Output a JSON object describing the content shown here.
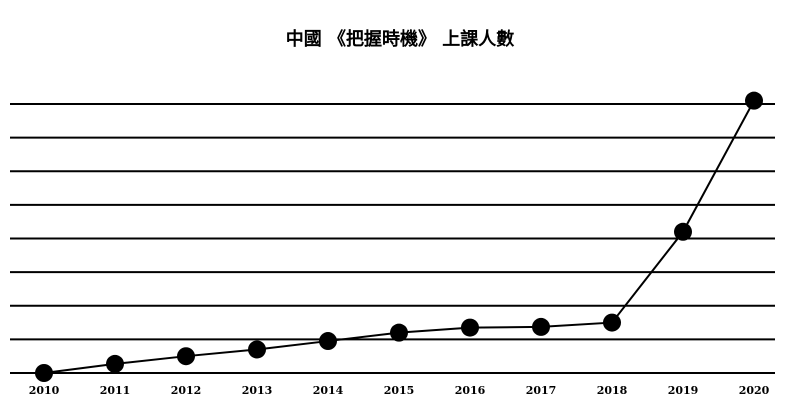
{
  "chart_data": {
    "type": "line",
    "title": "中國 《把握時機》 上課人數",
    "categories": [
      "2010",
      "2011",
      "2012",
      "2013",
      "2014",
      "2015",
      "2016",
      "2017",
      "2018",
      "2019",
      "2020"
    ],
    "values": [
      0,
      0.27,
      0.5,
      0.7,
      0.95,
      1.2,
      1.35,
      1.37,
      1.5,
      4.2,
      8.1
    ],
    "color": "#000000",
    "ylim": [
      0,
      8
    ],
    "yticks": [
      0,
      1,
      2,
      3,
      4,
      5,
      6,
      7,
      8
    ],
    "grid": true
  }
}
